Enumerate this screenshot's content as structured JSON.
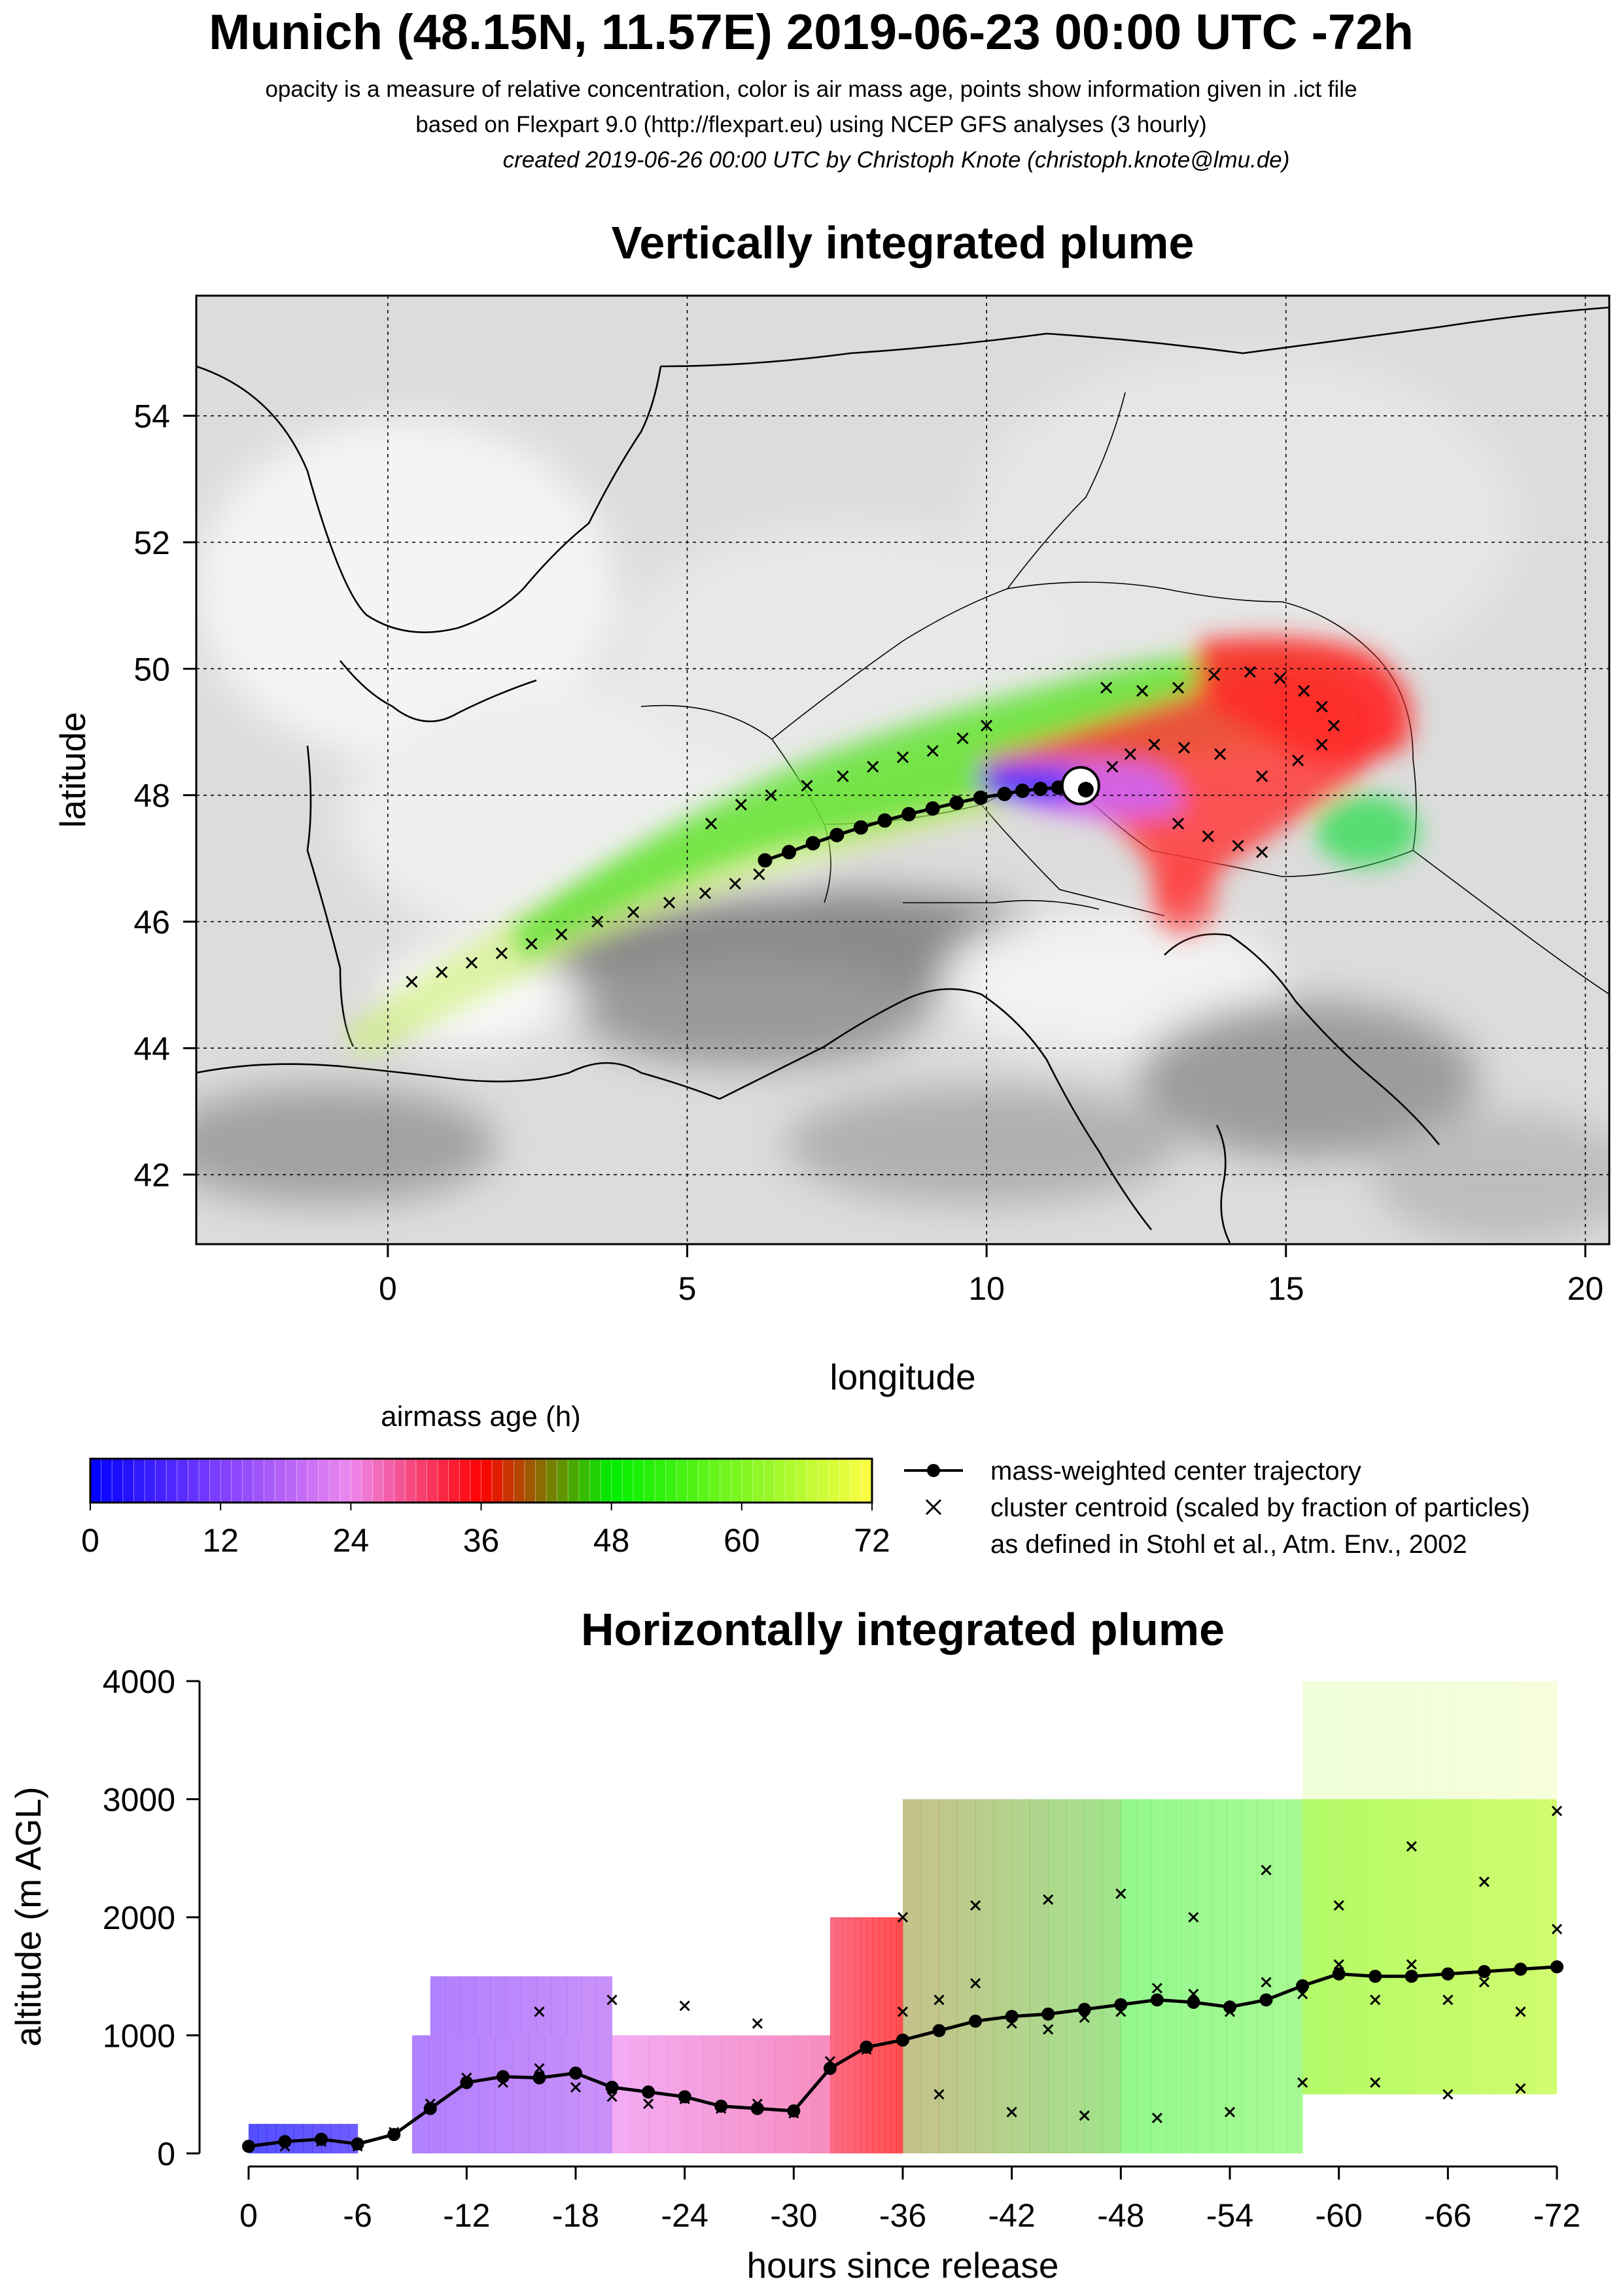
{
  "header": {
    "title": "Munich (48.15N, 11.57E) 2019-06-23 00:00 UTC -72h",
    "line1": "opacity is a measure of relative concentration, color is air mass age, points show information given in .ict file",
    "line2": "based on Flexpart 9.0 (http://flexpart.eu) using NCEP GFS analyses (3 hourly)",
    "line3": "created 2019-06-26 00:00 UTC by Christoph Knote (christoph.knote@lmu.de)"
  },
  "colors": {
    "young": "#0000ff",
    "mid": "#ff0000",
    "old": "#ffff00",
    "green": "#00ff00"
  },
  "chart_data": [
    {
      "type": "scatter",
      "title": "Vertically integrated plume",
      "xlabel": "longitude",
      "ylabel": "latitude",
      "xlim": [
        -3.2,
        20.4
      ],
      "ylim": [
        40.9,
        55.9
      ],
      "xticks": [
        0,
        5,
        10,
        15,
        20
      ],
      "yticks": [
        42,
        44,
        46,
        48,
        50,
        52,
        54
      ],
      "xtick_labels": [
        "0",
        "5",
        "10",
        "15",
        "20"
      ],
      "ytick_labels": [
        "42",
        "44",
        "46",
        "48",
        "50",
        "52",
        "54"
      ],
      "grid": true,
      "release_point": {
        "lon": 11.57,
        "lat": 48.15
      },
      "center_trajectory": {
        "lon": [
          11.57,
          11.2,
          10.9,
          10.6,
          10.3,
          9.9,
          9.5,
          9.1,
          8.7,
          8.3,
          7.9,
          7.5,
          7.1,
          6.7,
          6.3
        ],
        "lat": [
          48.15,
          48.12,
          48.1,
          48.07,
          48.02,
          47.96,
          47.88,
          47.79,
          47.7,
          47.6,
          47.49,
          47.37,
          47.24,
          47.1,
          46.97
        ]
      },
      "cluster_centroids": {
        "lon": [
          0.4,
          0.9,
          1.4,
          1.9,
          2.4,
          2.9,
          3.5,
          4.1,
          4.7,
          5.3,
          5.8,
          6.2,
          5.4,
          5.9,
          6.4,
          7.0,
          7.6,
          8.1,
          8.6,
          9.1,
          9.6,
          10.0,
          12.0,
          12.6,
          13.2,
          13.8,
          14.4,
          14.9,
          15.3,
          15.6,
          15.8,
          15.6,
          15.2,
          14.6,
          13.9,
          13.3,
          12.8,
          12.4,
          12.1,
          14.2,
          14.6,
          13.7,
          13.2
        ],
        "lat": [
          45.05,
          45.2,
          45.35,
          45.5,
          45.65,
          45.8,
          46.0,
          46.15,
          46.3,
          46.45,
          46.6,
          46.75,
          47.55,
          47.85,
          48.0,
          48.15,
          48.3,
          48.45,
          48.6,
          48.7,
          48.9,
          49.1,
          49.7,
          49.65,
          49.7,
          49.9,
          49.95,
          49.85,
          49.65,
          49.4,
          49.1,
          48.8,
          48.55,
          48.3,
          48.65,
          48.75,
          48.8,
          48.65,
          48.45,
          47.2,
          47.1,
          47.35,
          47.55
        ]
      },
      "colorbar": {
        "label": "airmass age (h)",
        "ticks": [
          0,
          12,
          24,
          36,
          48,
          60,
          72
        ],
        "tick_labels": [
          "0",
          "12",
          "24",
          "36",
          "48",
          "60",
          "72"
        ]
      },
      "legend": [
        {
          "symbol": "line-dot",
          "label": "mass-weighted center trajectory"
        },
        {
          "symbol": "cross",
          "label": "cluster centroid (scaled by fraction of particles)"
        },
        {
          "symbol": "none",
          "label": "as defined in Stohl et al., Atm. Env., 2002"
        }
      ],
      "legend_position": "right of colorbar"
    },
    {
      "type": "line",
      "title": "Horizontally integrated plume",
      "xlabel": "hours since release",
      "ylabel": "altitude (m AGL)",
      "xlim": [
        0,
        -72
      ],
      "ylim": [
        0,
        4000
      ],
      "xticks": [
        0,
        -6,
        -12,
        -18,
        -24,
        -30,
        -36,
        -42,
        -48,
        -54,
        -60,
        -66,
        -72
      ],
      "xtick_labels": [
        "0",
        "-6",
        "-12",
        "-18",
        "-24",
        "-30",
        "-36",
        "-42",
        "-48",
        "-54",
        "-60",
        "-66",
        "-72"
      ],
      "yticks": [
        0,
        1000,
        2000,
        3000,
        4000
      ],
      "ytick_labels": [
        "0",
        "1000",
        "2000",
        "3000",
        "4000"
      ],
      "grid": false,
      "center_altitude": {
        "x": [
          0,
          -2,
          -4,
          -6,
          -8,
          -10,
          -12,
          -14,
          -16,
          -18,
          -20,
          -22,
          -24,
          -26,
          -28,
          -30,
          -32,
          -34,
          -36,
          -38,
          -40,
          -42,
          -44,
          -46,
          -48,
          -50,
          -52,
          -54,
          -56,
          -58,
          -60,
          -62,
          -64,
          -66,
          -68,
          -70,
          -72
        ],
        "y": [
          60,
          100,
          120,
          80,
          160,
          380,
          600,
          650,
          640,
          680,
          560,
          520,
          480,
          400,
          380,
          360,
          720,
          900,
          960,
          1040,
          1120,
          1160,
          1180,
          1220,
          1260,
          1300,
          1280,
          1240,
          1300,
          1420,
          1520,
          1500,
          1500,
          1520,
          1540,
          1560,
          1580
        ]
      },
      "cluster_altitudes": {
        "x": [
          -2,
          -4,
          -6,
          -8,
          -10,
          -12,
          -14,
          -16,
          -18,
          -20,
          -22,
          -24,
          -26,
          -28,
          -30,
          -32,
          -34,
          -36,
          -38,
          -40,
          -42,
          -44,
          -46,
          -48,
          -50,
          -52,
          -54,
          -56,
          -58,
          -60,
          -62,
          -64,
          -66,
          -68,
          -70,
          -72,
          -16,
          -20,
          -24,
          -28,
          -36,
          -40,
          -44,
          -48,
          -52,
          -56,
          -60,
          -64,
          -68,
          -72,
          -38,
          -42,
          -46,
          -50,
          -54,
          -58,
          -62,
          -66,
          -70
        ],
        "y": [
          60,
          100,
          60,
          180,
          420,
          640,
          600,
          720,
          560,
          480,
          420,
          460,
          380,
          420,
          340,
          780,
          880,
          1200,
          1300,
          1440,
          1100,
          1050,
          1150,
          1200,
          1400,
          1350,
          1200,
          1450,
          1350,
          1600,
          1300,
          1600,
          1300,
          1450,
          1200,
          1900,
          1200,
          1300,
          1250,
          1100,
          2000,
          2100,
          2150,
          2200,
          2000,
          2400,
          2100,
          2600,
          2300,
          2900,
          500,
          350,
          320,
          300,
          350,
          600,
          600,
          500,
          550
        ]
      },
      "shading_bands": [
        {
          "x0": 0,
          "x1": -6,
          "y0": 0,
          "y1": 250,
          "age": 3
        },
        {
          "x0": -9,
          "x1": -20,
          "y0": 0,
          "y1": 1000,
          "age": 16
        },
        {
          "x0": -10,
          "x1": -20,
          "y0": 1000,
          "y1": 1500,
          "age": 16
        },
        {
          "x0": -20,
          "x1": -32,
          "y0": 0,
          "y1": 1000,
          "age": 26
        },
        {
          "x0": -32,
          "x1": -36,
          "y0": 0,
          "y1": 2000,
          "age": 34
        },
        {
          "x0": -36,
          "x1": -48,
          "y0": 0,
          "y1": 3000,
          "age": 44
        },
        {
          "x0": -48,
          "x1": -58,
          "y0": 0,
          "y1": 3000,
          "age": 52
        },
        {
          "x0": -58,
          "x1": -72,
          "y0": 500,
          "y1": 3000,
          "age": 64
        },
        {
          "x0": -58,
          "x1": -72,
          "y0": 3000,
          "y1": 4000,
          "age": 66
        }
      ]
    }
  ]
}
